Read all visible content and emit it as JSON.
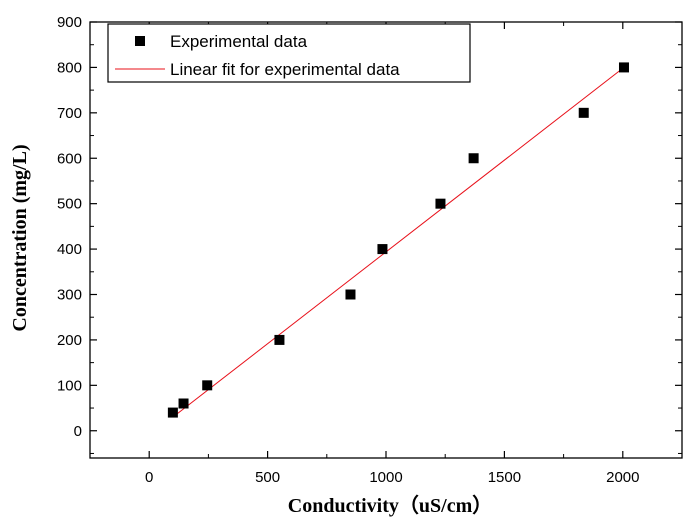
{
  "chart_data": {
    "type": "scatter",
    "xlabel": "Conductivity（uS/cm）",
    "ylabel": "Concentration (mg/L)",
    "xlim": [
      -250,
      2250
    ],
    "ylim": [
      -60,
      900
    ],
    "xticks": [
      0,
      500,
      1000,
      1500,
      2000
    ],
    "yticks": [
      0,
      100,
      200,
      300,
      400,
      500,
      600,
      700,
      800,
      900
    ],
    "grid": false,
    "legend_position": "top-left",
    "series": [
      {
        "name": "Experimental data",
        "kind": "scatter",
        "marker": "square",
        "color": "#000000",
        "x": [
          100,
          145,
          245,
          550,
          850,
          985,
          1230,
          1370,
          1835,
          2005
        ],
        "y": [
          40,
          60,
          100,
          200,
          300,
          400,
          500,
          600,
          700,
          800
        ]
      },
      {
        "name": "Linear fit for experimental data",
        "kind": "line",
        "color": "#e8101a",
        "x": [
          100,
          2005
        ],
        "y": [
          30,
          800
        ]
      }
    ]
  }
}
